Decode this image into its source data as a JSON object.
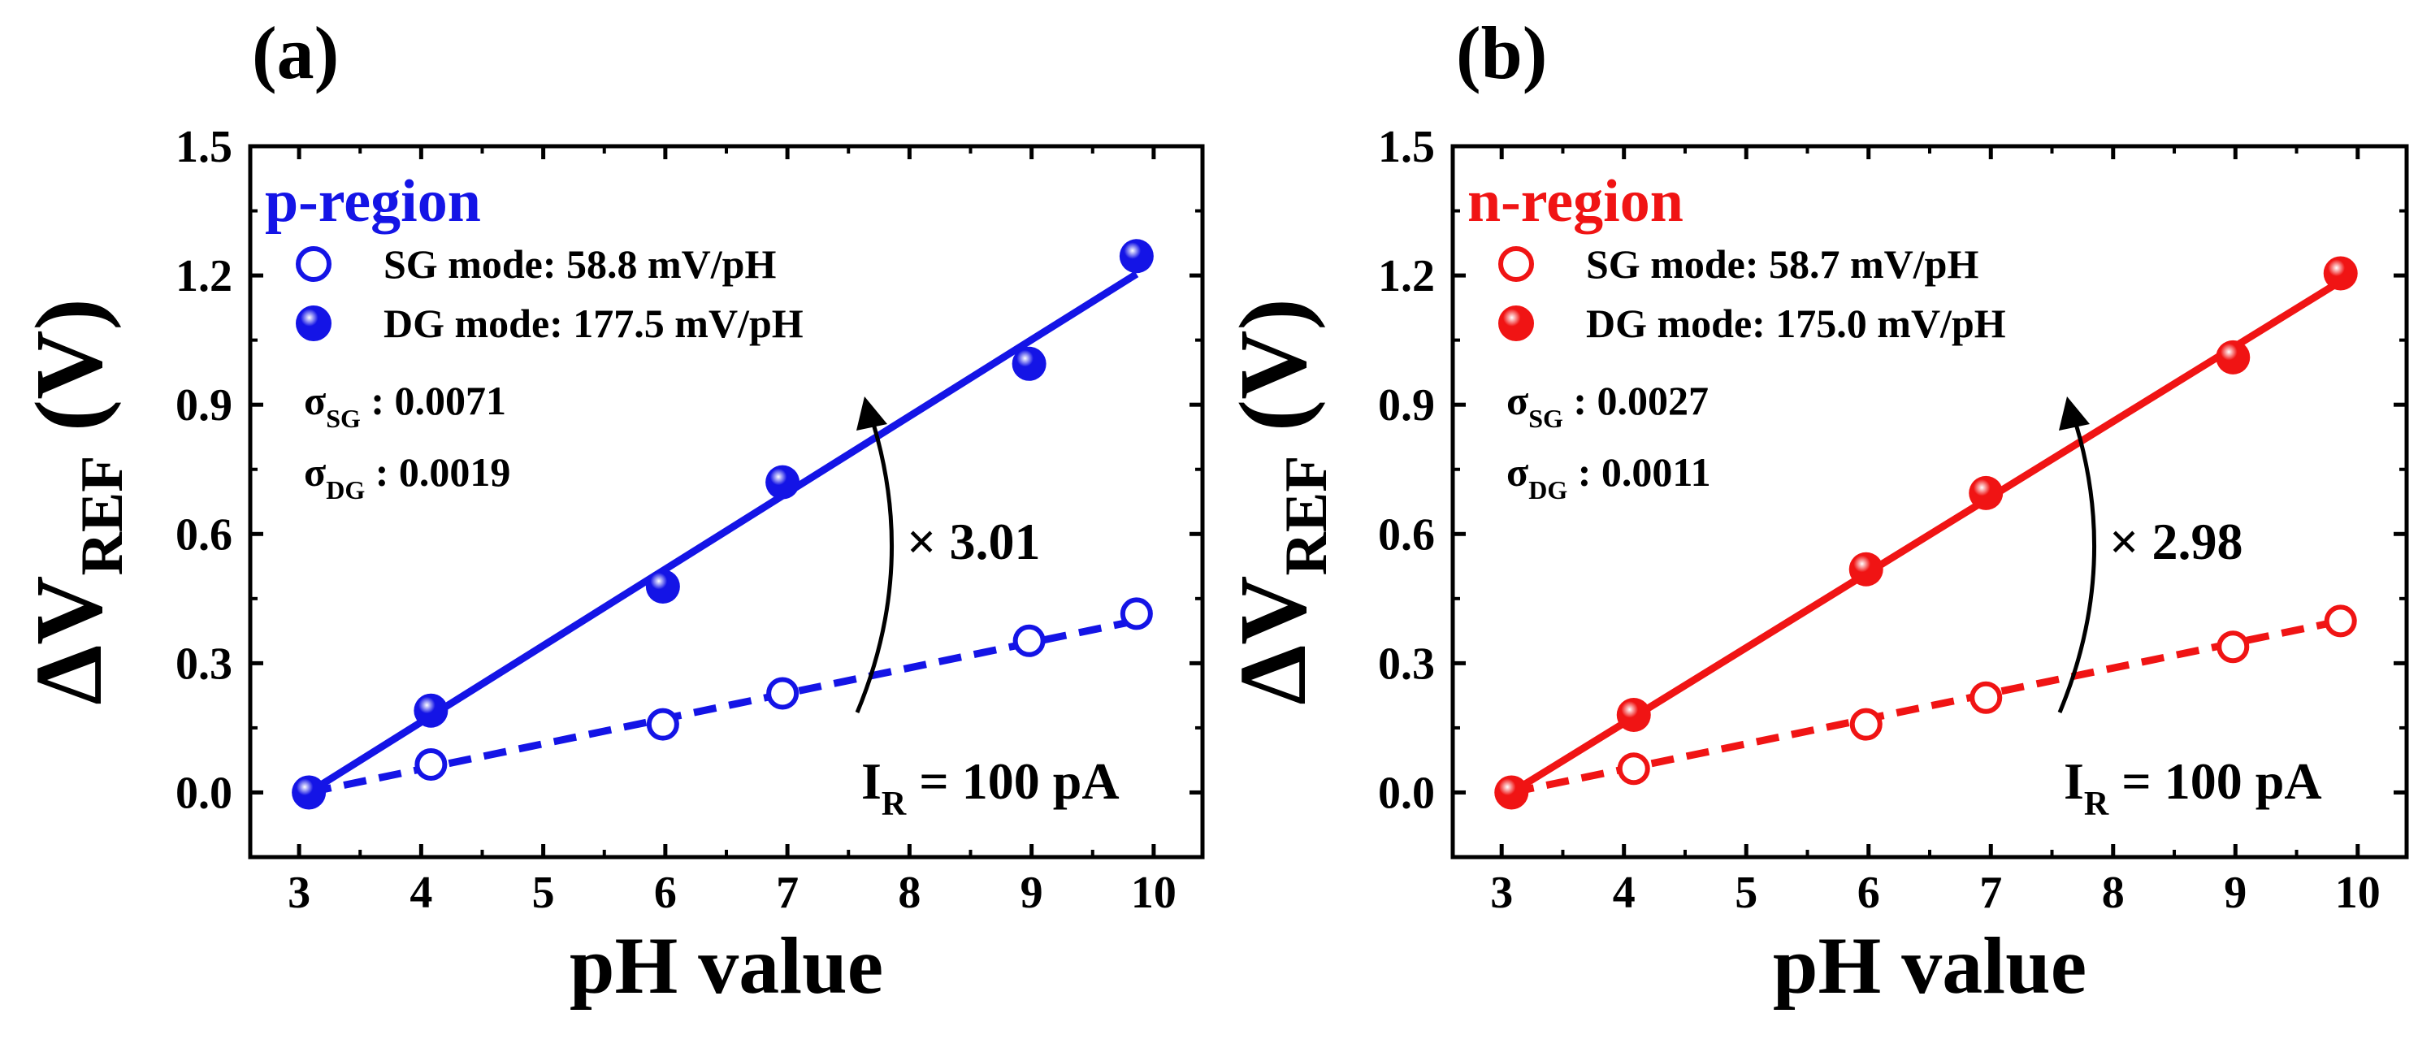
{
  "chart_data": [
    {
      "panel_label": "(a)",
      "type": "scatter",
      "region_title": "p-region",
      "accent": "#1414e6",
      "xlabel": "pH value",
      "ylabel_main": "ΔV",
      "ylabel_sub": "REF",
      "ylabel_unit": "(V)",
      "xlim": [
        2.6,
        10.4
      ],
      "ylim": [
        -0.15,
        1.5
      ],
      "xticks": [
        3,
        4,
        5,
        6,
        7,
        8,
        9,
        10
      ],
      "yticks": [
        0.0,
        0.3,
        0.6,
        0.9,
        1.2,
        1.5
      ],
      "ytick_labels": [
        "0.0",
        "0.3",
        "0.6",
        "0.9",
        "1.2",
        "1.5"
      ],
      "series": [
        {
          "name": "SG mode",
          "legend": "SG mode: 58.8 mV/pH",
          "marker": "open-circle",
          "line_style": "dashed",
          "x": [
            3.08,
            4.08,
            5.98,
            6.96,
            8.98,
            9.86
          ],
          "y": [
            0.0,
            0.065,
            0.158,
            0.23,
            0.352,
            0.415
          ],
          "fit": {
            "slope": 0.0588,
            "x0": 3.08,
            "x1": 9.86
          }
        },
        {
          "name": "DG mode",
          "legend": "DG mode: 177.5 mV/pH",
          "marker": "filled-sphere",
          "line_style": "solid",
          "x": [
            3.08,
            4.08,
            5.98,
            6.96,
            8.98,
            9.86
          ],
          "y": [
            0.0,
            0.19,
            0.478,
            0.72,
            0.995,
            1.245
          ],
          "fit": {
            "slope": 0.1775,
            "x0": 3.08,
            "x1": 9.86
          }
        }
      ],
      "sigma": {
        "sg_symbol": "σ",
        "sg_sub": "SG",
        "sg_value": ": 0.0071",
        "dg_symbol": "σ",
        "dg_sub": "DG",
        "dg_value": ": 0.0019"
      },
      "ratio_label": "× 3.01",
      "current_label": {
        "main": "I",
        "sub": "R",
        "value": "= 100 pA"
      }
    },
    {
      "panel_label": "(b)",
      "type": "scatter",
      "region_title": "n-region",
      "accent": "#f01414",
      "xlabel": "pH value",
      "ylabel_main": "ΔV",
      "ylabel_sub": "REF",
      "ylabel_unit": "(V)",
      "xlim": [
        2.6,
        10.4
      ],
      "ylim": [
        -0.15,
        1.5
      ],
      "xticks": [
        3,
        4,
        5,
        6,
        7,
        8,
        9,
        10
      ],
      "yticks": [
        0.0,
        0.3,
        0.6,
        0.9,
        1.2,
        1.5
      ],
      "ytick_labels": [
        "0.0",
        "0.3",
        "0.6",
        "0.9",
        "1.2",
        "1.5"
      ],
      "series": [
        {
          "name": "SG mode",
          "legend": "SG mode: 58.7 mV/pH",
          "marker": "open-circle",
          "line_style": "dashed",
          "x": [
            3.08,
            4.08,
            5.98,
            6.96,
            8.98,
            9.86
          ],
          "y": [
            0.0,
            0.055,
            0.158,
            0.22,
            0.338,
            0.398
          ],
          "fit": {
            "slope": 0.0587,
            "x0": 3.08,
            "x1": 9.86
          }
        },
        {
          "name": "DG mode",
          "legend": "DG mode: 175.0 mV/pH",
          "marker": "filled-sphere",
          "line_style": "solid",
          "x": [
            3.08,
            4.08,
            5.98,
            6.96,
            8.98,
            9.86
          ],
          "y": [
            0.0,
            0.18,
            0.518,
            0.695,
            1.01,
            1.205
          ],
          "fit": {
            "slope": 0.175,
            "x0": 3.08,
            "x1": 9.86
          }
        }
      ],
      "sigma": {
        "sg_symbol": "σ",
        "sg_sub": "SG",
        "sg_value": ": 0.0027",
        "dg_symbol": "σ",
        "dg_sub": "DG",
        "dg_value": ": 0.0011"
      },
      "ratio_label": "× 2.98",
      "current_label": {
        "main": "I",
        "sub": "R",
        "value": "= 100 pA"
      }
    }
  ]
}
